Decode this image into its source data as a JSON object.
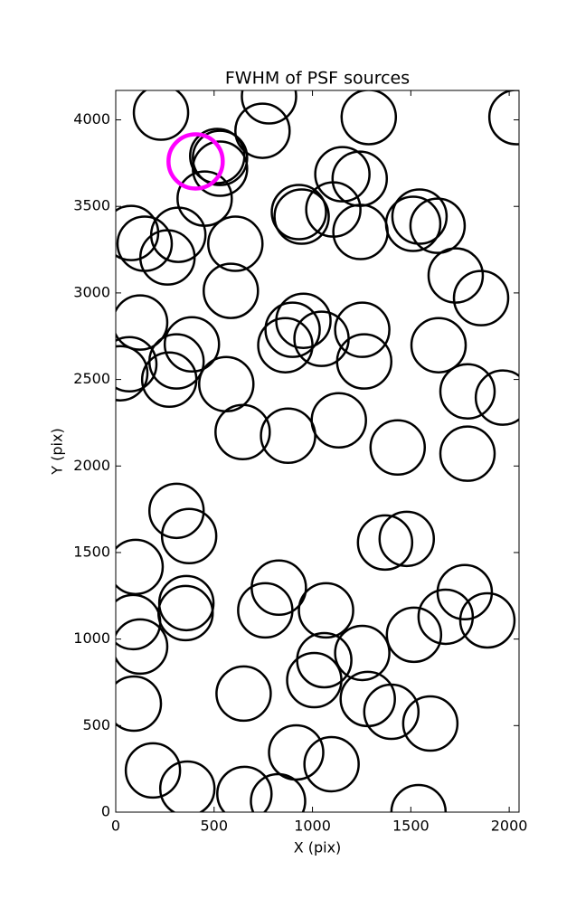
{
  "chart_data": {
    "type": "scatter",
    "title": "FWHM of PSF sources",
    "xlabel": "X (pix)",
    "ylabel": "Y (pix)",
    "xlim": [
      0,
      2050
    ],
    "ylim": [
      0,
      4170
    ],
    "xticks": [
      0,
      500,
      1000,
      1500,
      2000
    ],
    "yticks": [
      0,
      500,
      1000,
      1500,
      2000,
      2500,
      3000,
      3500,
      4000
    ],
    "series": [
      {
        "color": "#000000",
        "x": [
          230,
          779,
          746,
          516,
          530,
          530,
          452,
          78,
          147,
          318,
          263,
          608,
          585,
          931,
          945,
          1106,
          1152,
          1240,
          1244,
          1286,
          1512,
          1544,
          1636,
          1728,
          1857,
          2037,
          124,
          69,
          23,
          309,
          387,
          272,
          562,
          645,
          876,
          862,
          899,
          954,
          1046,
          1253,
          1263,
          1134,
          1641,
          1788,
          1968,
          1433,
          1788,
          309,
          373,
          101,
          359,
          355,
          88,
          124,
          92,
          760,
          829,
          1069,
          1060,
          1009,
          1253,
          1281,
          1401,
          1369,
          1479,
          1516,
          1677,
          1774,
          1889,
          1599,
          650,
          917,
          1097,
          189,
          364,
          654,
          825,
          1539
        ],
        "y": [
          4042,
          4136,
          3937,
          3791,
          3718,
          3780,
          3545,
          3346,
          3284,
          3336,
          3205,
          3284,
          3012,
          3467,
          3441,
          3482,
          3686,
          3660,
          3352,
          4016,
          3399,
          3441,
          3388,
          3101,
          2970,
          4016,
          2829,
          2588,
          2536,
          2604,
          2703,
          2499,
          2473,
          2196,
          2175,
          2698,
          2787,
          2839,
          2735,
          2787,
          2604,
          2264,
          2698,
          2431,
          2395,
          2107,
          2071,
          1741,
          1595,
          1417,
          1208,
          1150,
          1098,
          957,
          627,
          1166,
          1297,
          1166,
          878,
          763,
          920,
          654,
          580,
          1558,
          1579,
          1025,
          1129,
          1271,
          1108,
          512,
          685,
          345,
          277,
          241,
          136,
          105,
          63,
          0
        ]
      },
      {
        "color": "#ff00ff",
        "x": [
          406
        ],
        "y": [
          3760
        ]
      }
    ]
  }
}
